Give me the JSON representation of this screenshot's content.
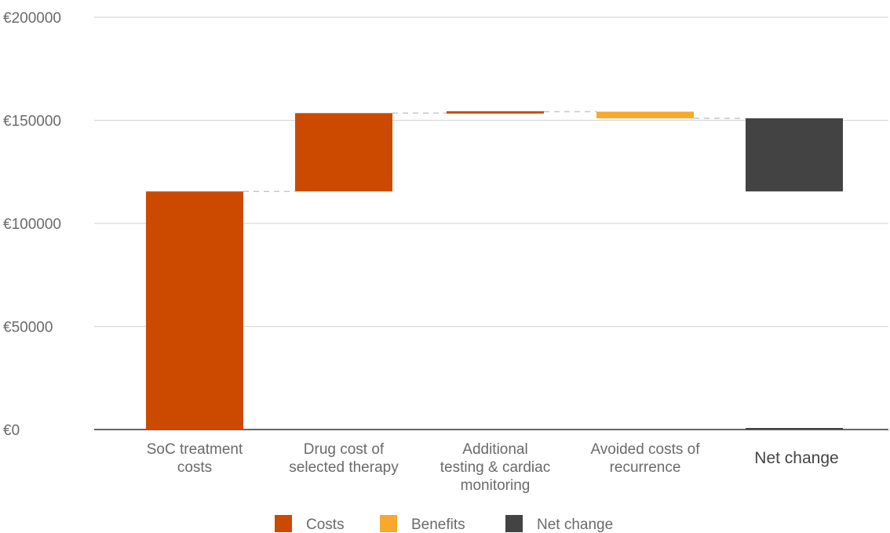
{
  "chart_data": {
    "type": "bar",
    "subtype": "waterfall",
    "title": "",
    "xlabel": "",
    "ylabel": "",
    "ylim": [
      0,
      200000
    ],
    "y_ticks": [
      "€0",
      "€50000",
      "€100000",
      "€150000",
      "€200000"
    ],
    "y_tick_values": [
      0,
      50000,
      100000,
      150000,
      200000
    ],
    "grid": true,
    "legend_position": "bottom",
    "categories": [
      [
        "SoC treatment",
        "costs"
      ],
      [
        "Drug cost of",
        "selected therapy"
      ],
      [
        "Additional",
        "testing & cardiac",
        "monitoring"
      ],
      [
        "Avoided costs of",
        "recurrence"
      ],
      [
        "Net change"
      ]
    ],
    "bars": [
      {
        "start": 0,
        "end": 115500,
        "kind": "cost"
      },
      {
        "start": 115500,
        "end": 153500,
        "kind": "cost"
      },
      {
        "start": 153500,
        "end": 154200,
        "kind": "cost"
      },
      {
        "start": 154200,
        "end": 151000,
        "kind": "benefit"
      },
      {
        "start": 115500,
        "end": 151000,
        "kind": "net"
      }
    ],
    "legend": [
      {
        "key": "cost",
        "label": "Costs",
        "color": "#cc4a00"
      },
      {
        "key": "benefit",
        "label": "Benefits",
        "color": "#f8a82a"
      },
      {
        "key": "net",
        "label": "Net change",
        "color": "#434343"
      }
    ],
    "colors": {
      "cost": "#cc4a00",
      "benefit": "#f8a82a",
      "net": "#434343",
      "grid": "#d9d9d9",
      "axis": "#333333",
      "connector": "#c8c8c8"
    }
  }
}
